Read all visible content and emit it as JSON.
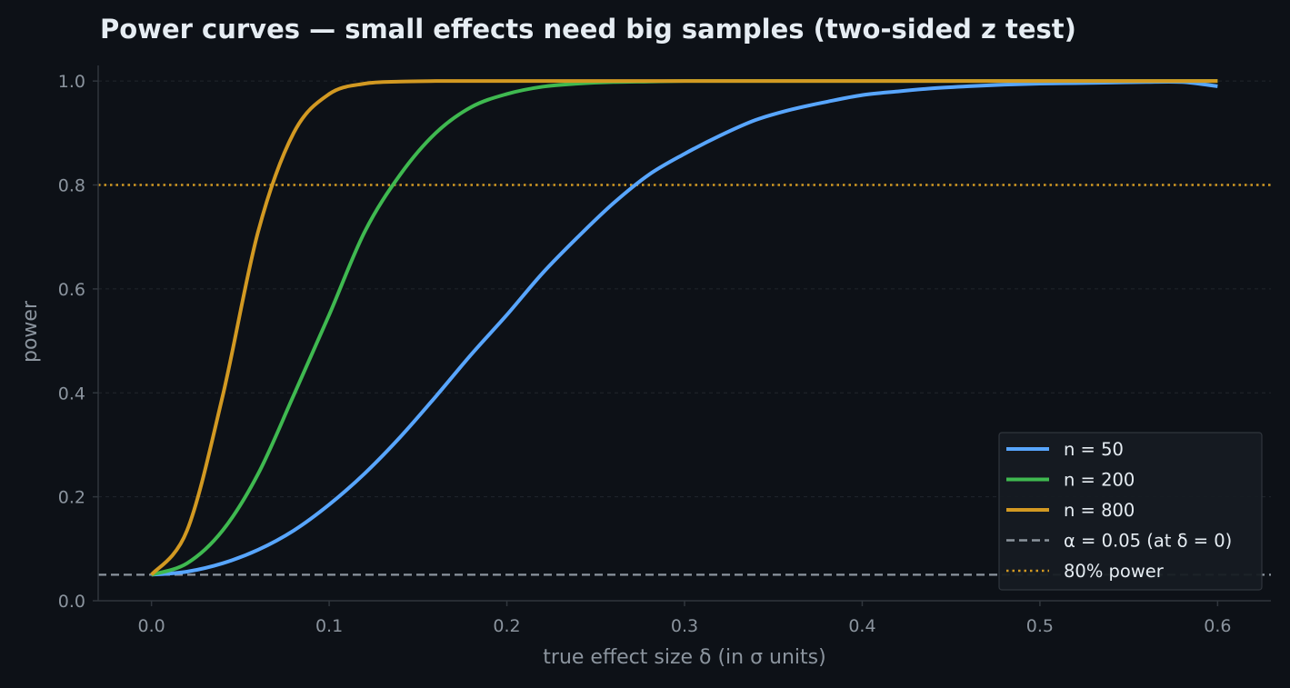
{
  "chart_data": {
    "type": "line",
    "title": "Power curves — small effects need big samples (two-sided z test)",
    "xlabel": "true effect size δ (in σ units)",
    "ylabel": "power",
    "xlim": [
      -0.03,
      0.63
    ],
    "ylim": [
      0.0,
      1.03
    ],
    "x_ticks": [
      "0.0",
      "0.1",
      "0.2",
      "0.3",
      "0.4",
      "0.5",
      "0.6"
    ],
    "y_ticks": [
      "0.0",
      "0.2",
      "0.4",
      "0.6",
      "0.8",
      "1.0"
    ],
    "grid": "horizontal dashed",
    "legend_position": "bottom-right",
    "x": [
      0.0,
      0.02,
      0.04,
      0.06,
      0.08,
      0.1,
      0.12,
      0.14,
      0.16,
      0.18,
      0.2,
      0.22,
      0.24,
      0.26,
      0.28,
      0.3,
      0.32,
      0.34,
      0.36,
      0.38,
      0.4,
      0.42,
      0.44,
      0.46,
      0.48,
      0.5,
      0.52,
      0.54,
      0.56,
      0.58,
      0.6
    ],
    "series": [
      {
        "name": "n = 50",
        "color": "#58a6ff",
        "values": [
          0.05,
          0.056,
          0.072,
          0.098,
          0.135,
          0.185,
          0.245,
          0.315,
          0.393,
          0.474,
          0.55,
          0.63,
          0.7,
          0.765,
          0.82,
          0.86,
          0.895,
          0.925,
          0.945,
          0.96,
          0.973,
          0.98,
          0.986,
          0.99,
          0.993,
          0.995,
          0.996,
          0.997,
          0.998,
          0.998,
          0.99
        ]
      },
      {
        "name": "n = 200",
        "color": "#3fb950",
        "values": [
          0.05,
          0.072,
          0.135,
          0.244,
          0.395,
          0.55,
          0.71,
          0.82,
          0.9,
          0.95,
          0.975,
          0.989,
          0.995,
          0.998,
          0.999,
          1.0,
          1.0,
          1.0,
          1.0,
          1.0,
          1.0,
          1.0,
          1.0,
          1.0,
          1.0,
          1.0,
          1.0,
          1.0,
          1.0,
          1.0,
          1.0
        ]
      },
      {
        "name": "n = 800",
        "color": "#d29922",
        "values": [
          0.05,
          0.135,
          0.393,
          0.71,
          0.9,
          0.975,
          0.995,
          0.999,
          1.0,
          1.0,
          1.0,
          1.0,
          1.0,
          1.0,
          1.0,
          1.0,
          1.0,
          1.0,
          1.0,
          1.0,
          1.0,
          1.0,
          1.0,
          1.0,
          1.0,
          1.0,
          1.0,
          1.0,
          1.0,
          1.0,
          1.0
        ]
      }
    ],
    "reference_lines": [
      {
        "name": "α = 0.05 (at δ = 0)",
        "y": 0.05,
        "style": "dashed",
        "color": "#8b949e"
      },
      {
        "name": "80% power",
        "y": 0.8,
        "style": "dotted",
        "color": "#d29922"
      }
    ]
  }
}
